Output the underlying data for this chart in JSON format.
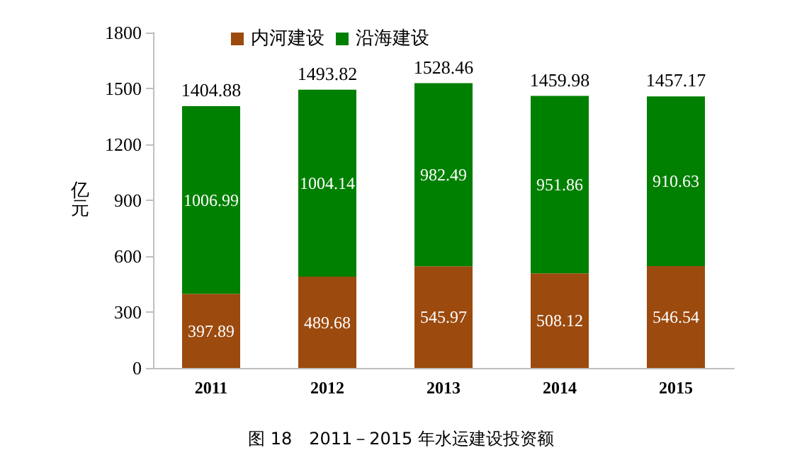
{
  "chart_data": {
    "type": "bar",
    "stacked": true,
    "ylabel": "亿元",
    "categories": [
      "2011",
      "2012",
      "2013",
      "2014",
      "2015"
    ],
    "series": [
      {
        "name": "内河建设",
        "color": "#9c4a0e",
        "values": [
          397.89,
          489.68,
          545.97,
          508.12,
          546.54
        ]
      },
      {
        "name": "沿海建设",
        "color": "#008000",
        "values": [
          1006.99,
          1004.14,
          982.49,
          951.86,
          910.63
        ]
      }
    ],
    "totals": [
      "1404.88",
      "1493.82",
      "1528.46",
      "1459.98",
      "1457.17"
    ],
    "data_labels": true,
    "ylim": [
      0,
      1800
    ],
    "yticks": [
      0,
      300,
      600,
      900,
      1200,
      1500,
      1800
    ],
    "grid": false,
    "legend": "top left",
    "annotations": [
      "图 18　2011－2015 年水运建设投资额"
    ]
  }
}
